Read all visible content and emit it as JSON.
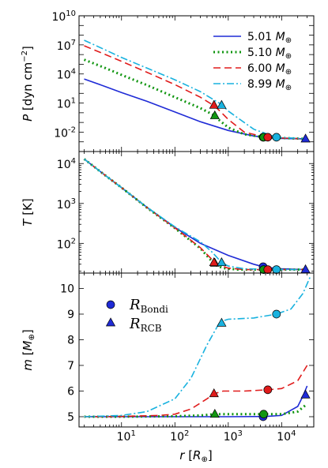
{
  "chart_data": {
    "type": "line",
    "xlabel": "r [R⊕]",
    "xscale": "log",
    "xlim": [
      1.6,
      40000
    ],
    "x_tick_labels": [
      "10^1",
      "10^2",
      "10^3",
      "10^4"
    ],
    "colors": {
      "5.01": "#1f2bd6",
      "5.10": "#119611",
      "6.00": "#e01b1b",
      "8.99": "#19b2df"
    },
    "series": [
      {
        "name": "5.01 M⊕",
        "color": "#1f2bd6",
        "dash": "solid"
      },
      {
        "name": "5.10 M⊕",
        "color": "#119611",
        "dash": "dotted"
      },
      {
        "name": "6.00 M⊕",
        "color": "#e01b1b",
        "dash": "dashed"
      },
      {
        "name": "8.99 M⊕",
        "color": "#19b2df",
        "dash": "dashdot"
      }
    ],
    "panels": [
      {
        "id": "pressure",
        "ylabel": "P [dyn cm^-2]",
        "yscale": "log",
        "ylim": [
          0.0001,
          10000000000
        ],
        "y_tick_labels": [
          "10^-2",
          "10^1",
          "10^4",
          "10^7",
          "10^10"
        ],
        "legend": "top-right",
        "curves": [
          {
            "x": [
              2,
              5,
              10,
              30,
              100,
              300,
              1000,
              3000,
              6000,
              10000,
              30000
            ],
            "y": [
              3000,
              500,
              120,
              15,
              1.2,
              0.12,
              0.015,
              0.004,
              0.0025,
              0.0022,
              0.002
            ]
          },
          {
            "x": [
              2,
              5,
              10,
              30,
              100,
              300,
              500,
              600,
              1000,
              2000,
              4800,
              10000,
              30000
            ],
            "y": [
              300000,
              40000,
              8000,
              700,
              40,
              3,
              0.7,
              0.3,
              0.03,
              0.006,
              0.003,
              0.0025,
              0.002
            ]
          },
          {
            "x": [
              2,
              5,
              10,
              30,
              100,
              300,
              550,
              700,
              1000,
              2000,
              5000,
              10000,
              30000
            ],
            "y": [
              8000000,
              1000000,
              200000,
              15000,
              800,
              40,
              5,
              1.5,
              0.2,
              0.01,
              0.003,
              0.0025,
              0.002
            ]
          },
          {
            "x": [
              2,
              5,
              10,
              30,
              100,
              300,
              750,
              1000,
              1500,
              3000,
              8000,
              15000,
              30000
            ],
            "y": [
              30000000,
              3000000,
              500000,
              40000,
              2500,
              150,
              7,
              1.5,
              0.3,
              0.02,
              0.003,
              0.0025,
              0.002
            ]
          }
        ],
        "bondi": [
          {
            "x": 4500,
            "y": 0.003
          },
          {
            "x": 4600,
            "y": 0.003
          },
          {
            "x": 5500,
            "y": 0.003
          },
          {
            "x": 8000,
            "y": 0.003
          }
        ],
        "rcb": [
          {
            "x": 28000,
            "y": 0.002
          },
          {
            "x": 560,
            "y": 0.5
          },
          {
            "x": 540,
            "y": 6
          },
          {
            "x": 750,
            "y": 6
          }
        ]
      },
      {
        "id": "temperature",
        "ylabel": "T [K]",
        "yscale": "log",
        "ylim": [
          18,
          20000
        ],
        "y_tick_labels": [
          "10^2",
          "10^3",
          "10^4"
        ],
        "legend": "none",
        "curves": [
          {
            "x": [
              2,
              5,
              10,
              30,
              100,
              300,
              1000,
              3000,
              5000,
              10000,
              30000
            ],
            "y": [
              13000,
              5000,
              2500,
              800,
              250,
              100,
              50,
              30,
              25,
              23,
              22
            ]
          },
          {
            "x": [
              2,
              5,
              10,
              30,
              100,
              300,
              520,
              600,
              800,
              1500,
              4500,
              10000,
              30000
            ],
            "y": [
              13000,
              5000,
              2500,
              780,
              240,
              75,
              33,
              28,
              24,
              22,
              22,
              22,
              22
            ]
          },
          {
            "x": [
              2,
              5,
              10,
              30,
              100,
              300,
              550,
              700,
              1000,
              2000,
              5500,
              10000,
              30000
            ],
            "y": [
              13000,
              5000,
              2500,
              790,
              245,
              78,
              34,
              28,
              24,
              22,
              22,
              22,
              22
            ]
          },
          {
            "x": [
              2,
              5,
              10,
              30,
              100,
              300,
              500,
              750,
              1000,
              2000,
              8000,
              15000,
              30000
            ],
            "y": [
              13000,
              5000,
              2500,
              800,
              260,
              110,
              60,
              33,
              27,
              23,
              22,
              22,
              22
            ]
          }
        ],
        "bondi": [
          {
            "x": 4500,
            "y": 26
          },
          {
            "x": 4600,
            "y": 22
          },
          {
            "x": 5500,
            "y": 22
          },
          {
            "x": 8000,
            "y": 22
          }
        ],
        "rcb": [
          {
            "x": 28000,
            "y": 22
          },
          {
            "x": 560,
            "y": 32
          },
          {
            "x": 540,
            "y": 33
          },
          {
            "x": 750,
            "y": 33
          }
        ]
      },
      {
        "id": "mass",
        "ylabel": "m [M⊕]",
        "yscale": "linear",
        "ylim": [
          4.6,
          10.6
        ],
        "y_tick_labels": [
          "5",
          "6",
          "7",
          "8",
          "9",
          "10"
        ],
        "legend": "top-left",
        "legend_entries": [
          "R_Bondi",
          "R_RCB"
        ],
        "curves": [
          {
            "x": [
              2,
              10,
              100,
              1000,
              5000,
              10000,
              20000,
              25000,
              30000
            ],
            "y": [
              5.0,
              5.0,
              5.0,
              5.0,
              5.01,
              5.05,
              5.4,
              5.8,
              6.2
            ]
          },
          {
            "x": [
              2,
              10,
              100,
              300,
              550,
              1000,
              4500,
              10000,
              20000,
              30000
            ],
            "y": [
              5.0,
              5.0,
              5.02,
              5.05,
              5.1,
              5.1,
              5.1,
              5.1,
              5.2,
              5.5
            ]
          },
          {
            "x": [
              2,
              10,
              50,
              100,
              200,
              400,
              550,
              800,
              2000,
              5500,
              10000,
              20000,
              30000
            ],
            "y": [
              5.0,
              5.01,
              5.05,
              5.1,
              5.3,
              5.7,
              5.9,
              6.0,
              6.0,
              6.05,
              6.1,
              6.4,
              7.0
            ]
          },
          {
            "x": [
              2,
              10,
              30,
              100,
              200,
              400,
              700,
              1000,
              3000,
              8000,
              15000,
              25000,
              35000
            ],
            "y": [
              5.0,
              5.05,
              5.2,
              5.7,
              6.5,
              7.8,
              8.7,
              8.8,
              8.85,
              9.0,
              9.2,
              9.8,
              10.5
            ]
          }
        ],
        "bondi": [
          {
            "x": 4500,
            "y": 5.0
          },
          {
            "x": 4600,
            "y": 5.1
          },
          {
            "x": 5500,
            "y": 6.05
          },
          {
            "x": 8000,
            "y": 9.0
          }
        ],
        "rcb": [
          {
            "x": 28000,
            "y": 5.85
          },
          {
            "x": 560,
            "y": 5.1
          },
          {
            "x": 540,
            "y": 5.9
          },
          {
            "x": 750,
            "y": 8.65
          }
        ]
      }
    ]
  }
}
